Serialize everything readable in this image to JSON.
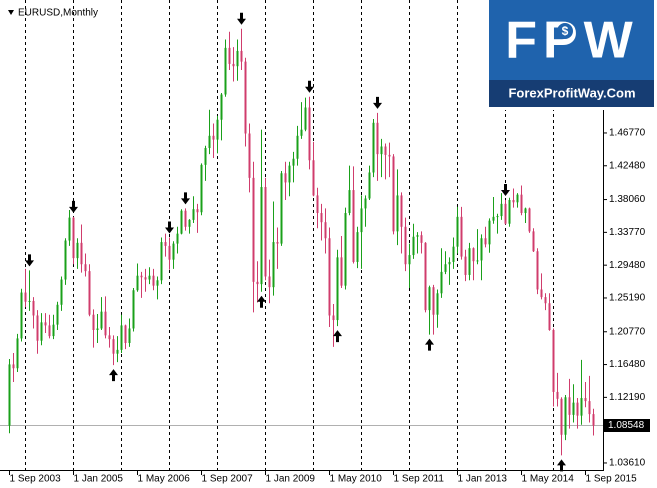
{
  "chart_data": {
    "type": "candlestick",
    "title": "EURUSD,Monthly",
    "logo": {
      "text": "FPW",
      "site": "ForexProfitWay.Com"
    },
    "x": [
      "1 Sep 2003",
      "1 Oct 2003",
      "1 Nov 2003",
      "1 Dec 2003",
      "1 Jan 2004",
      "1 Feb 2004",
      "1 Mar 2004",
      "1 Apr 2004",
      "1 May 2004",
      "1 Jun 2004",
      "1 Jul 2004",
      "1 Aug 2004",
      "1 Sep 2004",
      "1 Oct 2004",
      "1 Nov 2004",
      "1 Dec 2004",
      "1 Jan 2005",
      "1 Feb 2005",
      "1 Mar 2005",
      "1 Apr 2005",
      "1 May 2005",
      "1 Jun 2005",
      "1 Jul 2005",
      "1 Aug 2005",
      "1 Sep 2005",
      "1 Oct 2005",
      "1 Nov 2005",
      "1 Dec 2005",
      "1 Jan 2006",
      "1 Feb 2006",
      "1 Mar 2006",
      "1 Apr 2006",
      "1 May 2006",
      "1 Jun 2006",
      "1 Jul 2006",
      "1 Aug 2006",
      "1 Sep 2006",
      "1 Oct 2006",
      "1 Nov 2006",
      "1 Dec 2006",
      "1 Jan 2007",
      "1 Feb 2007",
      "1 Mar 2007",
      "1 Apr 2007",
      "1 May 2007",
      "1 Jun 2007",
      "1 Jul 2007",
      "1 Aug 2007",
      "1 Sep 2007",
      "1 Oct 2007",
      "1 Nov 2007",
      "1 Dec 2007",
      "1 Jan 2008",
      "1 Feb 2008",
      "1 Mar 2008",
      "1 Apr 2008",
      "1 May 2008",
      "1 Jun 2008",
      "1 Jul 2008",
      "1 Aug 2008",
      "1 Sep 2008",
      "1 Oct 2008",
      "1 Nov 2008",
      "1 Dec 2008",
      "1 Jan 2009",
      "1 Feb 2009",
      "1 Mar 2009",
      "1 Apr 2009",
      "1 May 2009",
      "1 Jun 2009",
      "1 Jul 2009",
      "1 Aug 2009",
      "1 Sep 2009",
      "1 Oct 2009",
      "1 Nov 2009",
      "1 Dec 2009",
      "1 Jan 2010",
      "1 Feb 2010",
      "1 Mar 2010",
      "1 Apr 2010",
      "1 May 2010",
      "1 Jun 2010",
      "1 Jul 2010",
      "1 Aug 2010",
      "1 Sep 2010",
      "1 Oct 2010",
      "1 Nov 2010",
      "1 Dec 2010",
      "1 Jan 2011",
      "1 Feb 2011",
      "1 Mar 2011",
      "1 Apr 2011",
      "1 May 2011",
      "1 Jun 2011",
      "1 Jul 2011",
      "1 Aug 2011",
      "1 Sep 2011",
      "1 Oct 2011",
      "1 Nov 2011",
      "1 Dec 2011",
      "1 Jan 2012",
      "1 Feb 2012",
      "1 Mar 2012",
      "1 Apr 2012",
      "1 May 2012",
      "1 Jun 2012",
      "1 Jul 2012",
      "1 Aug 2012",
      "1 Sep 2012",
      "1 Oct 2012",
      "1 Nov 2012",
      "1 Dec 2012",
      "1 Jan 2013",
      "1 Feb 2013",
      "1 Mar 2013",
      "1 Apr 2013",
      "1 May 2013",
      "1 Jun 2013",
      "1 Jul 2013",
      "1 Aug 2013",
      "1 Sep 2013",
      "1 Oct 2013",
      "1 Nov 2013",
      "1 Dec 2013",
      "1 Jan 2014",
      "1 Feb 2014",
      "1 Mar 2014",
      "1 Apr 2014",
      "1 May 2014",
      "1 Jun 2014",
      "1 Jul 2014",
      "1 Aug 2014",
      "1 Sep 2014",
      "1 Oct 2014",
      "1 Nov 2014",
      "1 Dec 2014",
      "1 Jan 2015",
      "1 Feb 2015",
      "1 Mar 2015",
      "1 Apr 2015",
      "1 May 2015",
      "1 Jun 2015",
      "1 Jul 2015",
      "1 Aug 2015",
      "1 Sep 2015",
      "1 Oct 2015",
      "1 Nov 2015"
    ],
    "open": [
      1.085,
      1.165,
      1.16,
      1.199,
      1.259,
      1.247,
      1.248,
      1.229,
      1.196,
      1.22,
      1.216,
      1.202,
      1.217,
      1.243,
      1.276,
      1.327,
      1.357,
      1.304,
      1.324,
      1.296,
      1.287,
      1.23,
      1.21,
      1.212,
      1.234,
      1.203,
      1.198,
      1.179,
      1.184,
      1.216,
      1.193,
      1.212,
      1.262,
      1.281,
      1.279,
      1.276,
      1.281,
      1.268,
      1.275,
      1.325,
      1.32,
      1.302,
      1.323,
      1.336,
      1.366,
      1.345,
      1.354,
      1.368,
      1.364,
      1.426,
      1.448,
      1.464,
      1.459,
      1.485,
      1.518,
      1.579,
      1.558,
      1.555,
      1.575,
      1.561,
      1.467,
      1.409,
      1.273,
      1.27,
      1.397,
      1.28,
      1.266,
      1.325,
      1.323,
      1.415,
      1.403,
      1.425,
      1.434,
      1.464,
      1.472,
      1.501,
      1.432,
      1.386,
      1.363,
      1.351,
      1.33,
      1.229,
      1.223,
      1.305,
      1.268,
      1.363,
      1.393,
      1.299,
      1.338,
      1.369,
      1.382,
      1.416,
      1.481,
      1.44,
      1.45,
      1.439,
      1.437,
      1.339,
      1.386,
      1.345,
      1.296,
      1.308,
      1.332,
      1.334,
      1.324,
      1.236,
      1.266,
      1.23,
      1.258,
      1.286,
      1.296,
      1.299,
      1.319,
      1.358,
      1.306,
      1.282,
      1.317,
      1.3,
      1.301,
      1.33,
      1.322,
      1.353,
      1.358,
      1.359,
      1.375,
      1.349,
      1.38,
      1.377,
      1.387,
      1.363,
      1.369,
      1.339,
      1.313,
      1.263,
      1.253,
      1.245,
      1.21,
      1.129,
      1.12,
      1.073,
      1.122,
      1.099,
      1.115,
      1.098,
      1.121,
      1.117,
      1.1
    ],
    "high": [
      1.172,
      1.18,
      1.205,
      1.264,
      1.29,
      1.288,
      1.253,
      1.236,
      1.232,
      1.232,
      1.23,
      1.23,
      1.247,
      1.28,
      1.33,
      1.367,
      1.358,
      1.33,
      1.348,
      1.31,
      1.296,
      1.237,
      1.231,
      1.253,
      1.254,
      1.214,
      1.203,
      1.202,
      1.23,
      1.217,
      1.225,
      1.265,
      1.297,
      1.286,
      1.29,
      1.292,
      1.29,
      1.28,
      1.331,
      1.336,
      1.331,
      1.326,
      1.345,
      1.368,
      1.369,
      1.355,
      1.385,
      1.375,
      1.428,
      1.451,
      1.498,
      1.48,
      1.49,
      1.52,
      1.59,
      1.6,
      1.58,
      1.59,
      1.604,
      1.566,
      1.48,
      1.43,
      1.3,
      1.472,
      1.409,
      1.302,
      1.378,
      1.344,
      1.418,
      1.43,
      1.43,
      1.443,
      1.477,
      1.508,
      1.514,
      1.515,
      1.456,
      1.396,
      1.375,
      1.369,
      1.344,
      1.244,
      1.315,
      1.333,
      1.37,
      1.425,
      1.424,
      1.345,
      1.386,
      1.386,
      1.425,
      1.486,
      1.494,
      1.46,
      1.454,
      1.455,
      1.44,
      1.42,
      1.39,
      1.357,
      1.323,
      1.349,
      1.338,
      1.339,
      1.325,
      1.268,
      1.269,
      1.263,
      1.317,
      1.313,
      1.305,
      1.331,
      1.371,
      1.371,
      1.315,
      1.324,
      1.318,
      1.342,
      1.335,
      1.345,
      1.356,
      1.384,
      1.362,
      1.389,
      1.38,
      1.383,
      1.395,
      1.389,
      1.399,
      1.37,
      1.37,
      1.343,
      1.317,
      1.284,
      1.258,
      1.258,
      1.212,
      1.154,
      1.122,
      1.125,
      1.146,
      1.139,
      1.121,
      1.171,
      1.142,
      1.15,
      1.107
    ],
    "low": [
      1.075,
      1.142,
      1.155,
      1.195,
      1.24,
      1.235,
      1.212,
      1.179,
      1.19,
      1.206,
      1.199,
      1.198,
      1.21,
      1.235,
      1.269,
      1.32,
      1.296,
      1.29,
      1.285,
      1.28,
      1.228,
      1.187,
      1.193,
      1.21,
      1.199,
      1.187,
      1.164,
      1.168,
      1.18,
      1.185,
      1.188,
      1.208,
      1.26,
      1.252,
      1.26,
      1.27,
      1.262,
      1.25,
      1.27,
      1.306,
      1.289,
      1.29,
      1.31,
      1.335,
      1.34,
      1.336,
      1.35,
      1.337,
      1.36,
      1.405,
      1.44,
      1.435,
      1.441,
      1.458,
      1.515,
      1.55,
      1.535,
      1.536,
      1.55,
      1.45,
      1.39,
      1.233,
      1.246,
      1.26,
      1.275,
      1.245,
      1.255,
      1.29,
      1.32,
      1.38,
      1.385,
      1.403,
      1.425,
      1.46,
      1.47,
      1.42,
      1.385,
      1.343,
      1.327,
      1.31,
      1.214,
      1.188,
      1.215,
      1.265,
      1.263,
      1.36,
      1.297,
      1.291,
      1.29,
      1.345,
      1.38,
      1.41,
      1.405,
      1.41,
      1.407,
      1.41,
      1.335,
      1.321,
      1.31,
      1.287,
      1.265,
      1.303,
      1.31,
      1.31,
      1.233,
      1.204,
      1.204,
      1.213,
      1.252,
      1.283,
      1.269,
      1.29,
      1.31,
      1.302,
      1.274,
      1.275,
      1.275,
      1.296,
      1.275,
      1.318,
      1.311,
      1.349,
      1.336,
      1.354,
      1.348,
      1.345,
      1.37,
      1.37,
      1.36,
      1.35,
      1.337,
      1.312,
      1.257,
      1.25,
      1.236,
      1.209,
      1.11,
      1.11,
      1.046,
      1.066,
      1.081,
      1.089,
      1.081,
      1.086,
      1.109,
      1.089,
      1.072
    ],
    "close": [
      1.165,
      1.16,
      1.199,
      1.259,
      1.247,
      1.248,
      1.229,
      1.196,
      1.22,
      1.216,
      1.202,
      1.217,
      1.243,
      1.276,
      1.327,
      1.357,
      1.304,
      1.324,
      1.296,
      1.287,
      1.23,
      1.21,
      1.212,
      1.234,
      1.203,
      1.198,
      1.179,
      1.184,
      1.216,
      1.193,
      1.212,
      1.262,
      1.281,
      1.279,
      1.276,
      1.281,
      1.268,
      1.275,
      1.325,
      1.32,
      1.302,
      1.323,
      1.336,
      1.366,
      1.345,
      1.354,
      1.368,
      1.364,
      1.426,
      1.448,
      1.464,
      1.459,
      1.485,
      1.518,
      1.579,
      1.558,
      1.555,
      1.575,
      1.561,
      1.467,
      1.409,
      1.273,
      1.27,
      1.397,
      1.28,
      1.266,
      1.325,
      1.323,
      1.415,
      1.403,
      1.425,
      1.434,
      1.464,
      1.472,
      1.501,
      1.432,
      1.386,
      1.363,
      1.351,
      1.33,
      1.229,
      1.223,
      1.305,
      1.268,
      1.363,
      1.393,
      1.299,
      1.338,
      1.369,
      1.382,
      1.416,
      1.481,
      1.44,
      1.45,
      1.439,
      1.437,
      1.339,
      1.386,
      1.345,
      1.296,
      1.308,
      1.332,
      1.334,
      1.324,
      1.236,
      1.266,
      1.23,
      1.258,
      1.286,
      1.296,
      1.299,
      1.319,
      1.358,
      1.306,
      1.282,
      1.317,
      1.3,
      1.301,
      1.33,
      1.322,
      1.353,
      1.358,
      1.359,
      1.375,
      1.349,
      1.38,
      1.377,
      1.387,
      1.363,
      1.369,
      1.339,
      1.313,
      1.263,
      1.253,
      1.245,
      1.21,
      1.129,
      1.12,
      1.073,
      1.122,
      1.099,
      1.115,
      1.098,
      1.121,
      1.117,
      1.1,
      1.085
    ],
    "up_color": "#1aa01a",
    "down_color": "#d03c6c",
    "fractal_highs": [
      5,
      16,
      40,
      44,
      58,
      75,
      92,
      124
    ],
    "fractal_lows": [
      26,
      63,
      82,
      105,
      138
    ],
    "current_price": {
      "value": 1.08548,
      "label": "1.08548"
    },
    "ylim": [
      1.0269,
      1.6416
    ],
    "yticks": [
      {
        "value": 1.4677,
        "label": "1.46770"
      },
      {
        "value": 1.4248,
        "label": "1.42480"
      },
      {
        "value": 1.3806,
        "label": "1.38060"
      },
      {
        "value": 1.3377,
        "label": "1.33770"
      },
      {
        "value": 1.2948,
        "label": "1.29480"
      },
      {
        "value": 1.2519,
        "label": "1.25190"
      },
      {
        "value": 1.2077,
        "label": "1.20770"
      },
      {
        "value": 1.1648,
        "label": "1.16480"
      },
      {
        "value": 1.1219,
        "label": "1.12190"
      },
      {
        "value": 1.0361,
        "label": "1.03610"
      }
    ],
    "xticks": [
      "1 Sep 2003",
      "1 Jan 2005",
      "1 May 2006",
      "1 Sep 2007",
      "1 Jan 2009",
      "1 May 2010",
      "1 Sep 2011",
      "1 Jan 2013",
      "1 May 2014",
      "1 Sep 2015"
    ],
    "period_separators": "1 Jan",
    "grid": false
  }
}
